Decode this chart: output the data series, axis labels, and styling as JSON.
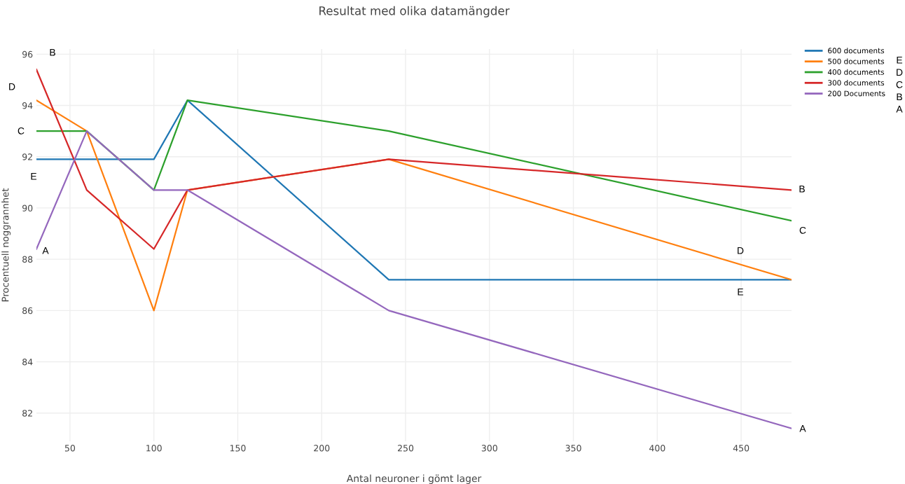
{
  "chart_data": {
    "type": "line",
    "title": "Resultat med olika datamängder",
    "xlabel": "Antal neuroner i gömt lager",
    "ylabel": "Procentuell noggrannhet",
    "x": [
      30,
      60,
      100,
      120,
      240,
      480
    ],
    "series": [
      {
        "name": "600 documents",
        "color": "#1f77b4",
        "values": [
          91.9,
          91.9,
          91.9,
          94.2,
          87.2,
          87.2
        ]
      },
      {
        "name": "500 documents",
        "color": "#ff7f0e",
        "values": [
          94.2,
          93.0,
          86.0,
          90.7,
          91.9,
          87.2
        ]
      },
      {
        "name": "400 documents",
        "color": "#2ca02c",
        "values": [
          93.0,
          93.0,
          90.7,
          94.2,
          93.0,
          89.5
        ]
      },
      {
        "name": "300 documents",
        "color": "#d62728",
        "values": [
          95.4,
          90.7,
          88.4,
          90.7,
          91.9,
          90.7
        ]
      },
      {
        "name": "200 Documents",
        "color": "#9467bd",
        "values": [
          88.4,
          93.0,
          90.7,
          90.7,
          86.0,
          81.4
        ]
      }
    ],
    "xlim": [
      30,
      480
    ],
    "xticks": [
      50,
      100,
      150,
      200,
      250,
      300,
      350,
      400,
      450
    ],
    "ylim": [
      80.9,
      96.2
    ],
    "yticks": [
      82,
      84,
      86,
      88,
      90,
      92,
      94,
      96
    ],
    "grid": true,
    "legend": "top right",
    "marker": "none",
    "line_style": "solid",
    "annotations": [
      "B",
      "D",
      "C",
      "E",
      "A",
      "B",
      "C",
      "D",
      "E",
      "A",
      "E",
      "D",
      "C",
      "B",
      "A"
    ]
  }
}
